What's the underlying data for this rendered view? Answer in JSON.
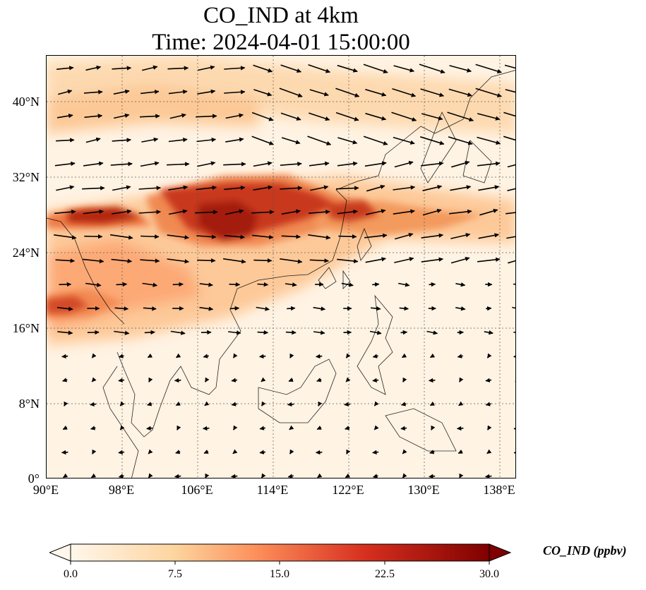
{
  "title": {
    "line1": "CO_IND at 4km",
    "line2": "Time: 2024-04-01 15:00:00"
  },
  "map": {
    "variable": "CO_IND",
    "height": "4km",
    "lon_range": [
      90,
      139.7
    ],
    "lat_range": [
      0,
      44.8
    ],
    "lat_ticks": [
      "40°N",
      "32°N",
      "24°N",
      "16°N",
      "8°N",
      "0°"
    ],
    "lon_ticks": [
      "90°E",
      "98°E",
      "106°E",
      "114°E",
      "122°E",
      "130°E",
      "138°E"
    ],
    "gridlines": "dotted",
    "overlay": "wind vectors (arrows)",
    "colors": {
      "background": "#fff3e3",
      "low": "#fff5eb",
      "mid": "#fdae6b",
      "high": "#d94801",
      "max": "#7f2704"
    }
  },
  "colorbar": {
    "label": "CO_IND (ppbv)",
    "ticks": [
      "0.0",
      "7.5",
      "15.0",
      "22.5",
      "30.0"
    ],
    "min": 0,
    "max": 30,
    "extend": "both",
    "colormap": "OrRd-like (white to dark red)"
  }
}
